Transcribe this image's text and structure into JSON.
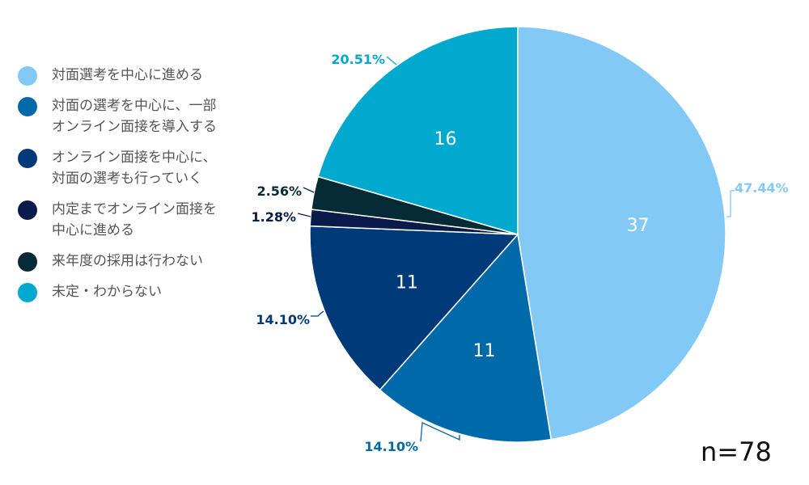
{
  "chart_data": {
    "type": "pie",
    "total": "n=78",
    "slices": [
      {
        "label": "対面選考を中心に進める",
        "value": 37,
        "percent": "47.44%",
        "color": "#82CAF5"
      },
      {
        "label": "対面の選考を中心に、一部オンライン面接を導入する",
        "value": 11,
        "percent": "14.10%",
        "color": "#0069AA"
      },
      {
        "label": "オンライン面接を中心に、対面の選考も行っていく",
        "value": 11,
        "percent": "14.10%",
        "color": "#003A78"
      },
      {
        "label": "内定までオンライン面接を中心に進める",
        "value": 1,
        "percent": "1.28%",
        "color": "#0A1A4A"
      },
      {
        "label": "来年度の採用は行わない",
        "value": 2,
        "percent": "2.56%",
        "color": "#072B36"
      },
      {
        "label": "未定・わからない",
        "value": 16,
        "percent": "20.51%",
        "color": "#00A9CD"
      }
    ]
  }
}
